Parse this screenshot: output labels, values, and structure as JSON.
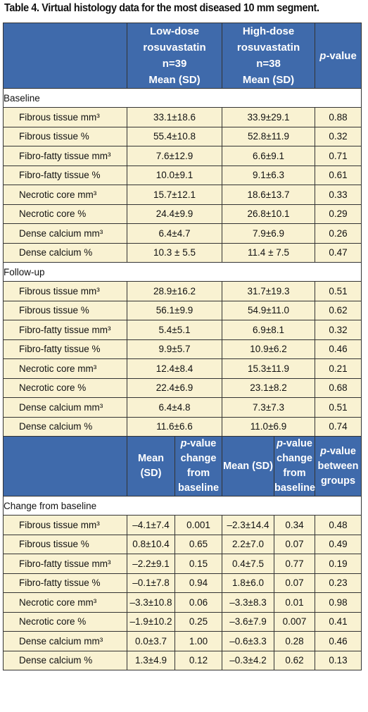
{
  "caption": "Table 4. Virtual histology data for the most diseased 10 mm segment.",
  "header1": {
    "low": [
      "Low-dose",
      "rosuvastatin",
      "n=39",
      "Mean (SD)"
    ],
    "high": [
      "High-dose",
      "rosuvastatin",
      "n=38",
      "Mean (SD)"
    ],
    "pvalue_italic": "p",
    "pvalue_rest": "-value"
  },
  "section_baseline": "Baseline",
  "baseline": [
    {
      "label": "Fibrous tissue mm³",
      "low": "33.1±18.6",
      "high": "33.9±29.1",
      "p": "0.88"
    },
    {
      "label": "Fibrous tissue %",
      "low": "55.4±10.8",
      "high": "52.8±11.9",
      "p": "0.32"
    },
    {
      "label": "Fibro-fatty tissue mm³",
      "low": "7.6±12.9",
      "high": "6.6±9.1",
      "p": "0.71"
    },
    {
      "label": "Fibro-fatty tissue %",
      "low": "10.0±9.1",
      "high": "9.1±6.3",
      "p": "0.61"
    },
    {
      "label": "Necrotic core mm³",
      "low": "15.7±12.1",
      "high": "18.6±13.7",
      "p": "0.33"
    },
    {
      "label": "Necrotic core %",
      "low": "24.4±9.9",
      "high": "26.8±10.1",
      "p": "0.29"
    },
    {
      "label": "Dense calcium mm³",
      "low": "6.4±4.7",
      "high": "7.9±6.9",
      "p": "0.26"
    },
    {
      "label": "Dense calcium %",
      "low": "10.3 ± 5.5",
      "high": "11.4 ± 7.5",
      "p": "0.47"
    }
  ],
  "section_followup": "Follow-up",
  "followup": [
    {
      "label": "Fibrous tissue mm³",
      "low": "28.9±16.2",
      "high": "31.7±19.3",
      "p": "0.51"
    },
    {
      "label": "Fibrous tissue %",
      "low": "56.1±9.9",
      "high": "54.9±11.0",
      "p": "0.62"
    },
    {
      "label": "Fibro-fatty tissue mm³",
      "low": "5.4±5.1",
      "high": "6.9±8.1",
      "p": "0.32"
    },
    {
      "label": "Fibro-fatty tissue %",
      "low": "9.9±5.7",
      "high": "10.9±6.2",
      "p": "0.46"
    },
    {
      "label": "Necrotic core mm³",
      "low": "12.4±8.4",
      "high": "15.3±11.9",
      "p": "0.21"
    },
    {
      "label": "Necrotic core %",
      "low": "22.4±6.9",
      "high": "23.1±8.2",
      "p": "0.68"
    },
    {
      "label": "Dense calcium mm³",
      "low": "6.4±4.8",
      "high": "7.3±7.3",
      "p": "0.51"
    },
    {
      "label": "Dense calcium %",
      "low": "11.6±6.6",
      "high": "11.0±6.9",
      "p": "0.74"
    }
  ],
  "header2": {
    "mean": "Mean (SD)",
    "p_change": [
      "-value",
      "change",
      "from",
      "baseline"
    ],
    "p_between": [
      "-value",
      "between",
      "groups"
    ],
    "p_italic": "p"
  },
  "section_change": "Change from baseline",
  "change": [
    {
      "label": "Fibrous tissue mm³",
      "low": "–4.1±7.4",
      "lowp": "0.001",
      "high": "–2.3±14.4",
      "highp": "0.34",
      "p": "0.48"
    },
    {
      "label": "Fibrous tissue %",
      "low": "0.8±10.4",
      "lowp": "0.65",
      "high": "2.2±7.0",
      "highp": "0.07",
      "p": "0.49"
    },
    {
      "label": "Fibro-fatty tissue mm³",
      "low": "–2.2±9.1",
      "lowp": "0.15",
      "high": "0.4±7.5",
      "highp": "0.77",
      "p": "0.19"
    },
    {
      "label": "Fibro-fatty tissue %",
      "low": "–0.1±7.8",
      "lowp": "0.94",
      "high": "1.8±6.0",
      "highp": "0.07",
      "p": "0.23"
    },
    {
      "label": "Necrotic core mm³",
      "low": "–3.3±10.8",
      "lowp": "0.06",
      "high": "–3.3±8.3",
      "highp": "0.01",
      "p": "0.98"
    },
    {
      "label": "Necrotic core %",
      "low": "–1.9±10.2",
      "lowp": "0.25",
      "high": "–3.6±7.9",
      "highp": "0.007",
      "p": "0.41"
    },
    {
      "label": "Dense calcium mm³",
      "low": "0.0±3.7",
      "lowp": "1.00",
      "high": "–0.6±3.3",
      "highp": "0.28",
      "p": "0.46"
    },
    {
      "label": "Dense calcium %",
      "low": "1.3±4.9",
      "lowp": "0.12",
      "high": "–0.3±4.2",
      "highp": "0.62",
      "p": "0.13"
    }
  ]
}
